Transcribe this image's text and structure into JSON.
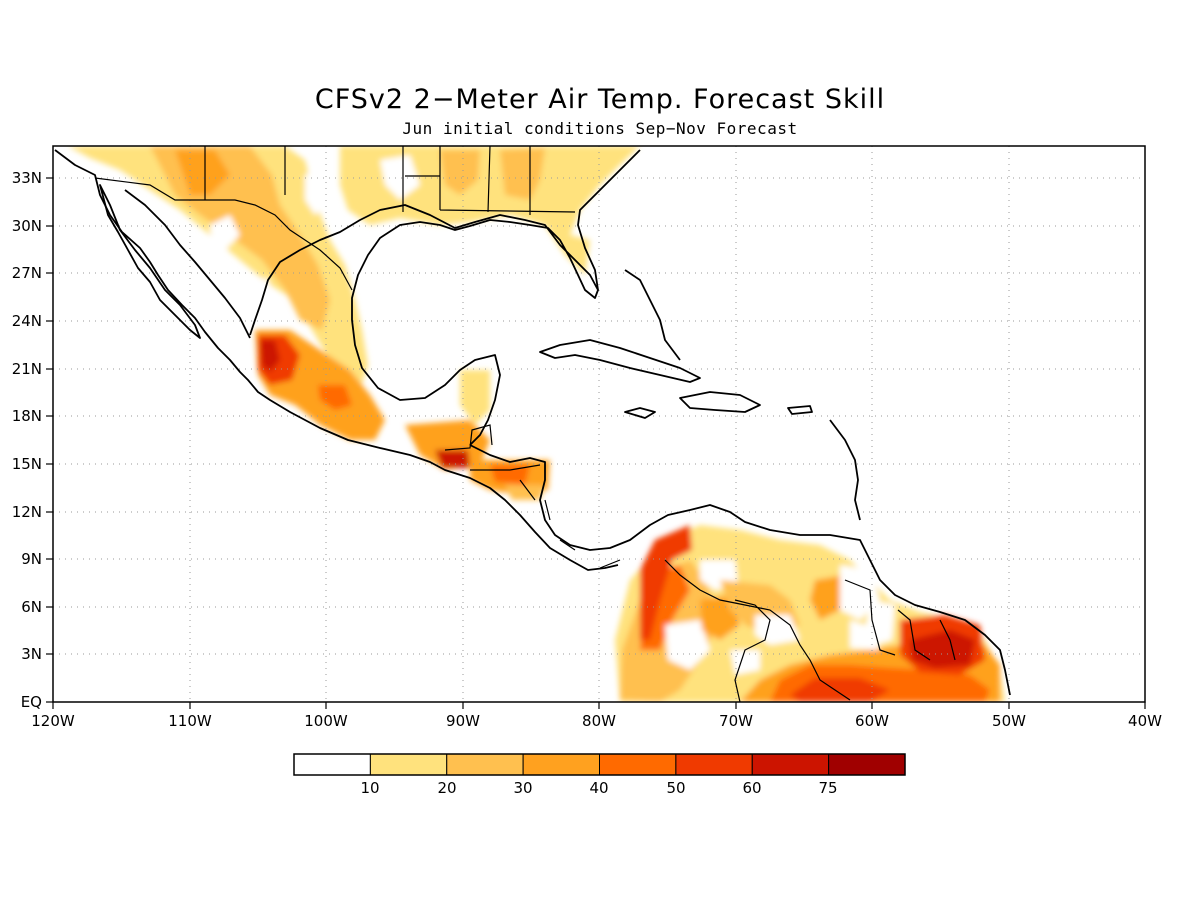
{
  "title": "CFSv2 2−Meter Air Temp. Forecast Skill",
  "subtitle": "Jun initial conditions  Sep−Nov Forecast",
  "map": {
    "region": "Central America, Caribbean and northern South America",
    "lon_range": [
      -120,
      -40
    ],
    "lat_range": [
      0,
      35
    ],
    "x_tick_labels": [
      "120W",
      "110W",
      "100W",
      "90W",
      "80W",
      "70W",
      "60W",
      "50W",
      "40W"
    ],
    "y_tick_labels": [
      "EQ",
      "3N",
      "6N",
      "9N",
      "12N",
      "15N",
      "18N",
      "21N",
      "24N",
      "27N",
      "30N",
      "33N"
    ],
    "grid": "dotted"
  },
  "colorbar": {
    "labels": [
      "10",
      "20",
      "30",
      "40",
      "50",
      "60",
      "75"
    ],
    "colors": [
      "#ffffff",
      "#ffe27d",
      "#ffc04f",
      "#ffa11f",
      "#ff6a00",
      "#f03a00",
      "#cc1400",
      "#a00000"
    ]
  },
  "chart_data": {
    "type": "heatmap",
    "title": "CFSv2 2−Meter Air Temp. Forecast Skill",
    "subtitle": "Jun initial conditions  Sep−Nov Forecast",
    "variable": "forecast skill",
    "levels": [
      10,
      20,
      30,
      40,
      50,
      60,
      75
    ],
    "regions": [
      {
        "area": "northern Mexico / southwest US",
        "lon": [
          -112,
          -98
        ],
        "lat": [
          24,
          35
        ],
        "level_range": [
          10,
          40
        ]
      },
      {
        "area": "southeast US",
        "lon": [
          -98,
          -80
        ],
        "lat": [
          29,
          35
        ],
        "level_range": [
          10,
          30
        ]
      },
      {
        "area": "western Mexico",
        "lon": [
          -106,
          -103
        ],
        "lat": [
          20,
          23
        ],
        "level_range": [
          40,
          60
        ]
      },
      {
        "area": "southern Mexico",
        "lon": [
          -104,
          -94
        ],
        "lat": [
          16,
          21
        ],
        "level_range": [
          20,
          50
        ]
      },
      {
        "area": "Guatemala",
        "lon": [
          -92,
          -89
        ],
        "lat": [
          14.5,
          16
        ],
        "level_range": [
          40,
          60
        ]
      },
      {
        "area": "Honduras / Nicaragua",
        "lon": [
          -90,
          -84
        ],
        "lat": [
          13,
          15.5
        ],
        "level_range": [
          20,
          50
        ]
      },
      {
        "area": "Colombia",
        "lon": [
          -78,
          -72
        ],
        "lat": [
          1,
          10
        ],
        "level_range": [
          20,
          60
        ]
      },
      {
        "area": "Venezuela",
        "lon": [
          -72,
          -60
        ],
        "lat": [
          2,
          10
        ],
        "level_range": [
          10,
          40
        ]
      },
      {
        "area": "Guyana / Suriname / French Guiana",
        "lon": [
          -58,
          -51
        ],
        "lat": [
          1,
          5
        ],
        "level_range": [
          40,
          60
        ]
      },
      {
        "area": "northern Brazil",
        "lon": [
          -72,
          -52
        ],
        "lat": [
          0,
          3
        ],
        "level_range": [
          20,
          60
        ]
      }
    ]
  }
}
